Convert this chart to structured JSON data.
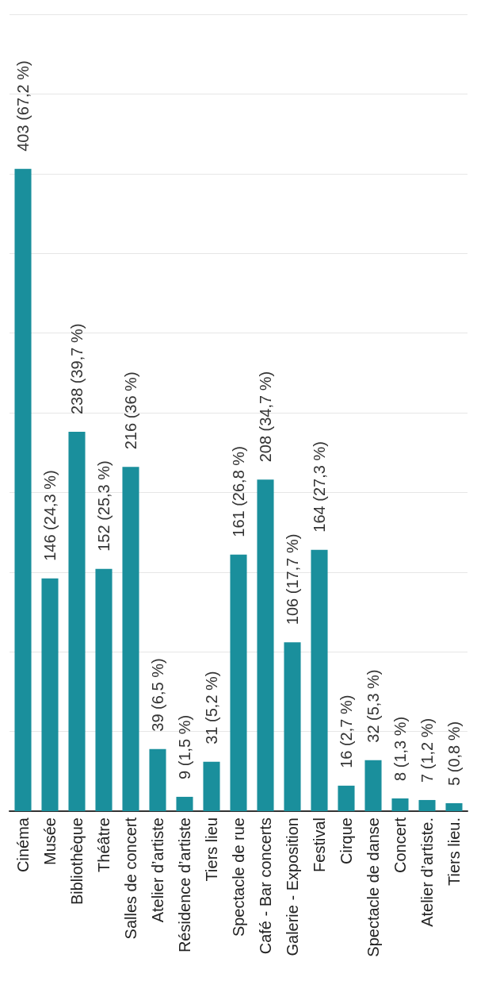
{
  "chart_data": {
    "type": "bar",
    "categories": [
      "Cinéma",
      "Musée",
      "Bibliothèque",
      "Théâtre",
      "Salles de concert",
      "Atelier d’artiste",
      "Résidence d’artiste",
      "Tiers lieu",
      "Spectacle de rue",
      "Café - Bar concerts",
      "Galerie - Exposition",
      "Festival",
      "Cirque",
      "Spectacle de danse",
      "Concert",
      "Atelier d’artiste.",
      "Tiers lieu."
    ],
    "values": [
      403,
      146,
      238,
      152,
      216,
      39,
      9,
      31,
      161,
      208,
      106,
      164,
      16,
      32,
      8,
      7,
      5
    ],
    "value_labels": [
      "403 (67,2 %)",
      "146 (24,3 %)",
      "238 (39,7 %)",
      "152 (25,3 %)",
      "216 (36 %)",
      "39 (6,5 %)",
      "9 (1,5 %)",
      "31 (5,2 %)",
      "161 (26,8 %)",
      "208 (34,7 %)",
      "106 (17,7 %)",
      "164 (27,3 %)",
      "16 (2,7 %)",
      "32 (5,3 %)",
      "8 (1,3 %)",
      "7 (1,2 %)",
      "5 (0,8 %)"
    ],
    "color": "#1a8f9c",
    "ylim": [
      0,
      500
    ],
    "yticks": [
      0,
      50,
      100,
      150,
      200,
      250,
      300,
      350,
      400,
      450,
      500
    ],
    "grid": "y",
    "tick_labels": "x"
  }
}
